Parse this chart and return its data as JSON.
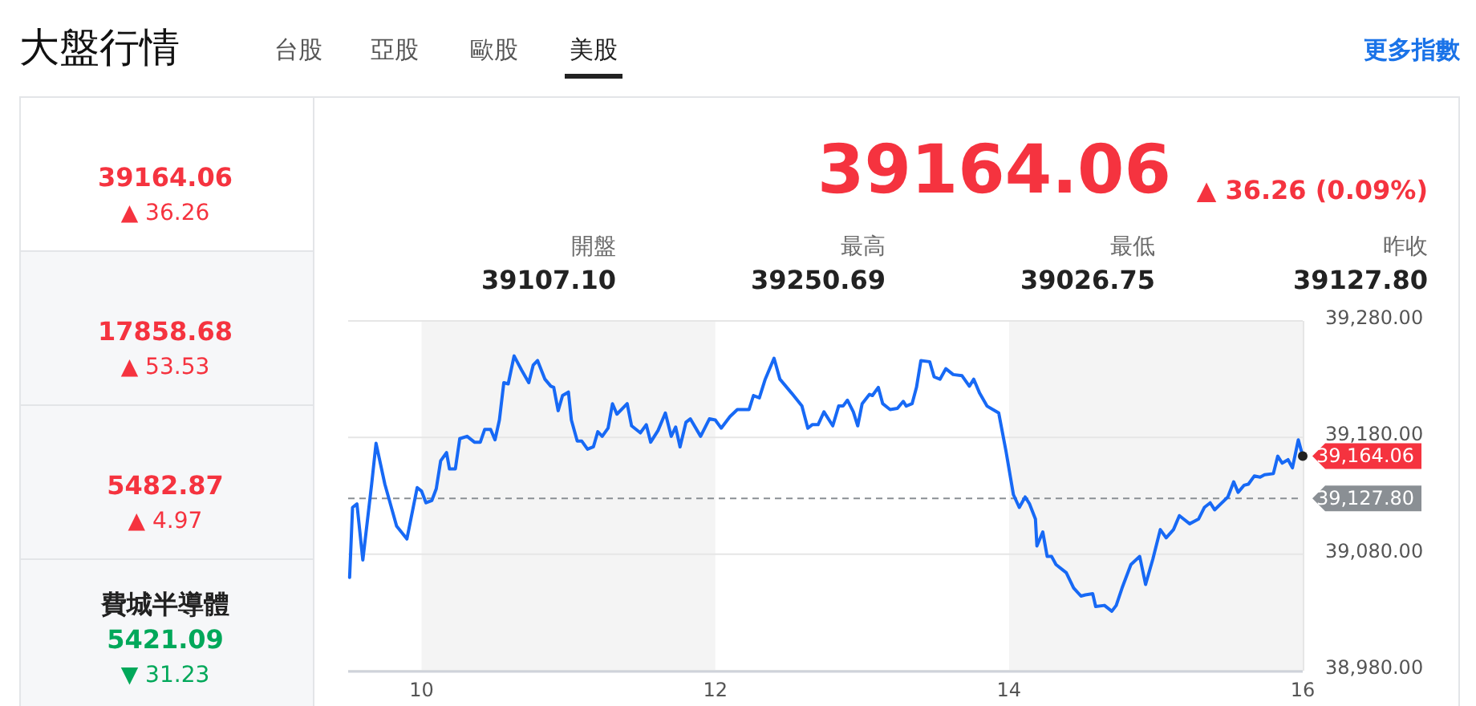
{
  "chart_data": {
    "type": "line",
    "title": "大盤行情",
    "annotations": [
      "台股",
      "亞股",
      "歐股",
      "美股",
      "更多指數",
      "39164.06",
      "▲ 36.26",
      "17858.68",
      "▲ 53.53",
      "5482.87",
      "▲ 4.97",
      "費城半導體",
      "5421.09",
      "▼ 31.23",
      "39164.06",
      "▲ 36.26 (0.09%)",
      "開盤",
      "39107.10",
      "最高",
      "39250.69",
      "最低",
      "39026.75",
      "昨收",
      "39127.80",
      {
        "text": "39,164.06",
        "x": 16,
        "y": 39164.06
      }
    ],
    "xlim": [
      9.5,
      16
    ],
    "xticks": [
      10,
      12,
      14,
      16
    ],
    "ylim": [
      38980,
      39280
    ],
    "yticks": [
      {
        "value": 38980,
        "label": "38,980.00"
      },
      {
        "value": 39080,
        "label": "39,080.00"
      },
      {
        "value": 39180,
        "label": "39,180.00"
      },
      {
        "value": 39280,
        "label": "39,280.00"
      }
    ],
    "grid": "y",
    "marker": "none",
    "line_style": "solid",
    "bands": [
      {
        "axis": "x",
        "from": 10,
        "to": 12,
        "color": "#f4f4f4"
      },
      {
        "axis": "x",
        "from": 14,
        "to": 16,
        "color": "#f4f4f4"
      }
    ],
    "ref_lines": [
      {
        "axis": "y",
        "value": 39127.8,
        "label": "39,127.80",
        "color": "#8a8f94",
        "line_style": "dashed"
      }
    ],
    "series": [
      {
        "color": "#1769f5",
        "x": [
          9.51,
          9.53,
          9.56,
          9.6,
          9.66,
          9.69,
          9.75,
          9.83,
          9.9,
          9.97,
          10.0,
          10.03,
          10.07,
          10.1,
          10.13,
          10.17,
          10.19,
          10.23,
          10.26,
          10.31,
          10.36,
          10.4,
          10.43,
          10.47,
          10.5,
          10.53,
          10.56,
          10.59,
          10.63,
          10.68,
          10.73,
          10.76,
          10.79,
          10.84,
          10.88,
          10.9,
          10.93,
          10.96,
          11.0,
          11.02,
          11.06,
          11.09,
          11.13,
          11.17,
          11.2,
          11.23,
          11.27,
          11.3,
          11.33,
          11.4,
          11.43,
          11.49,
          11.53,
          11.56,
          11.61,
          11.66,
          11.7,
          11.73,
          11.76,
          11.8,
          11.83,
          11.9,
          11.96,
          12.0,
          12.04,
          12.1,
          12.15,
          12.23,
          12.26,
          12.3,
          12.34,
          12.4,
          12.44,
          12.52,
          12.59,
          12.63,
          12.66,
          12.7,
          12.74,
          12.8,
          12.84,
          12.87,
          12.9,
          12.94,
          12.97,
          13.0,
          13.05,
          13.07,
          13.11,
          13.14,
          13.19,
          13.24,
          13.28,
          13.3,
          13.34,
          13.37,
          13.4,
          13.46,
          13.49,
          13.53,
          13.57,
          13.62,
          13.68,
          13.73,
          13.76,
          13.8,
          13.85,
          13.93,
          13.98,
          14.03,
          14.07,
          14.11,
          14.14,
          14.18,
          14.19,
          14.23,
          14.26,
          14.29,
          14.32,
          14.39,
          14.44,
          14.49,
          14.52,
          14.57,
          14.59,
          14.65,
          14.7,
          14.73,
          14.77,
          14.83,
          14.89,
          14.93,
          14.98,
          15.03,
          15.07,
          15.12,
          15.16,
          15.23,
          15.29,
          15.33,
          15.37,
          15.4,
          15.49,
          15.53,
          15.56,
          15.6,
          15.63,
          15.67,
          15.71,
          15.74,
          15.8,
          15.83,
          15.86,
          15.9,
          15.93,
          15.97,
          16.0
        ],
        "values": [
          39060,
          39120,
          39123,
          39075,
          39140,
          39175,
          39140,
          39104,
          39093,
          39137,
          39134,
          39124,
          39126,
          39136,
          39160,
          39167,
          39153,
          39153,
          39179,
          39181,
          39176,
          39176,
          39187,
          39187,
          39178,
          39195,
          39227,
          39226,
          39250,
          39238,
          39227,
          39242,
          39246,
          39230,
          39224,
          39223,
          39203,
          39216,
          39219,
          39195,
          39177,
          39177,
          39170,
          39172,
          39185,
          39181,
          39188,
          39209,
          39200,
          39209,
          39190,
          39184,
          39191,
          39176,
          39186,
          39201,
          39181,
          39189,
          39172,
          39193,
          39196,
          39181,
          39196,
          39195,
          39188,
          39198,
          39204,
          39204,
          39216,
          39214,
          39230,
          39248,
          39230,
          39218,
          39207,
          39188,
          39191,
          39191,
          39202,
          39190,
          39207,
          39207,
          39212,
          39202,
          39190,
          39209,
          39217,
          39216,
          39223,
          39209,
          39204,
          39205,
          39211,
          39207,
          39209,
          39223,
          39246,
          39245,
          39232,
          39230,
          39239,
          39234,
          39233,
          39224,
          39230,
          39218,
          39207,
          39201,
          39168,
          39131,
          39120,
          39129,
          39123,
          39110,
          39087,
          39099,
          39078,
          39078,
          39071,
          39064,
          39051,
          39044,
          39045,
          39046,
          39035,
          39036,
          39031,
          39036,
          39051,
          39071,
          39078,
          39054,
          39076,
          39101,
          39094,
          39101,
          39113,
          39106,
          39110,
          39120,
          39124,
          39118,
          39129,
          39142,
          39133,
          39139,
          39140,
          39147,
          39146,
          39148,
          39149,
          39164,
          39158,
          39161,
          39154,
          39178,
          39164
        ]
      }
    ]
  }
}
